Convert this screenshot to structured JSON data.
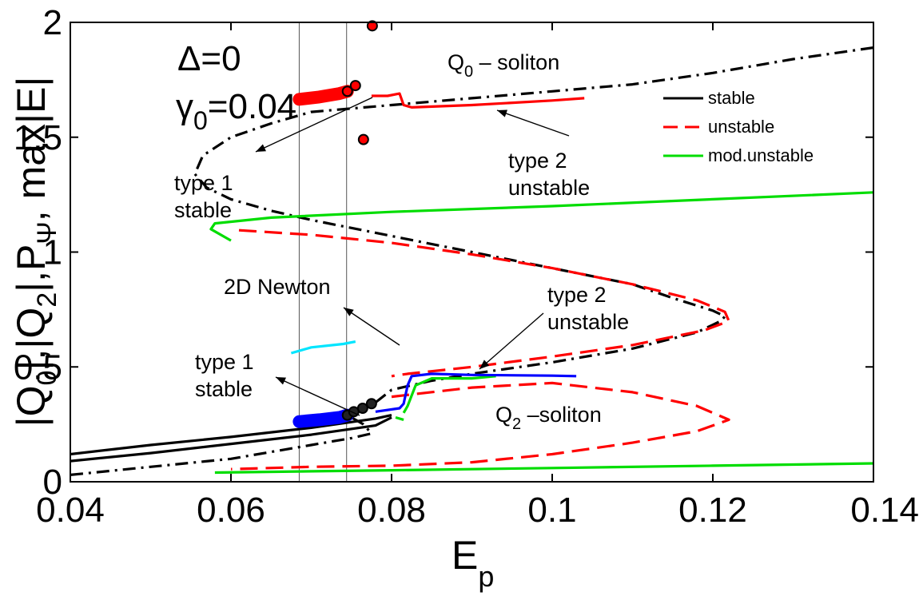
{
  "chart_data": {
    "type": "line",
    "xlabel": "E",
    "xlabel_sub": "p",
    "ylabel": "|Q0|,|Q2|,PΨ, max|E|",
    "xlim": [
      0.04,
      0.14
    ],
    "ylim": [
      0,
      2
    ],
    "x_ticks": [
      "0.04",
      "0.06",
      "0.08",
      "0.1",
      "0.12",
      "0.14"
    ],
    "y_ticks": [
      "0",
      "0.5",
      "1",
      "1.5",
      "2"
    ],
    "x_tick_values": [
      0.04,
      0.06,
      0.08,
      0.1,
      0.12,
      0.14
    ],
    "y_tick_values": [
      0,
      0.5,
      1,
      1.5,
      2
    ],
    "vertical_lines": [
      0.0685,
      0.0744
    ],
    "params": {
      "delta": "Δ=0",
      "gamma": "γ0=0.04"
    },
    "legend": {
      "position": "top-right",
      "entries": [
        {
          "label": "stable",
          "color": "#000000",
          "dash": "solid"
        },
        {
          "label": "unstable",
          "color": "#ff0000",
          "dash": "dashed"
        },
        {
          "label": "mod.unstable",
          "color": "#00dd00",
          "dash": "solid"
        }
      ]
    },
    "annotations": [
      {
        "lines": [
          "Q0 – soliton"
        ]
      },
      {
        "lines": [
          "type 1",
          "stable"
        ]
      },
      {
        "lines": [
          "type 2",
          "unstable"
        ]
      },
      {
        "lines": [
          "2D Newton"
        ]
      },
      {
        "lines": [
          "type 2",
          "unstable"
        ]
      },
      {
        "lines": [
          "type 1",
          "stable"
        ]
      },
      {
        "lines": [
          "Q2 –soliton"
        ]
      }
    ],
    "series": [
      {
        "color": "#000000",
        "dash": "dashdot",
        "points": [
          [
            0.04,
            0.03
          ],
          [
            0.05,
            0.065
          ],
          [
            0.06,
            0.1
          ],
          [
            0.07,
            0.16
          ],
          [
            0.075,
            0.19
          ],
          [
            0.0775,
            0.21
          ],
          [
            0.0765,
            0.25
          ],
          [
            0.0755,
            0.27
          ],
          [
            0.075,
            0.28
          ]
        ]
      },
      {
        "color": "#000000",
        "dash": "dashdot",
        "points": [
          [
            0.078,
            0.345
          ],
          [
            0.08,
            0.4
          ],
          [
            0.085,
            0.44
          ],
          [
            0.09,
            0.47
          ],
          [
            0.1,
            0.52
          ],
          [
            0.11,
            0.58
          ],
          [
            0.118,
            0.65
          ],
          [
            0.121,
            0.7
          ],
          [
            0.1215,
            0.72
          ],
          [
            0.12,
            0.745
          ],
          [
            0.115,
            0.8
          ],
          [
            0.11,
            0.86
          ],
          [
            0.1,
            0.93
          ],
          [
            0.09,
            1.0
          ],
          [
            0.08,
            1.07
          ],
          [
            0.07,
            1.14
          ],
          [
            0.065,
            1.18
          ],
          [
            0.06,
            1.23
          ],
          [
            0.057,
            1.28
          ],
          [
            0.0555,
            1.34
          ],
          [
            0.0565,
            1.42
          ],
          [
            0.06,
            1.5
          ],
          [
            0.065,
            1.56
          ],
          [
            0.07,
            1.61
          ],
          [
            0.08,
            1.64
          ],
          [
            0.09,
            1.67
          ],
          [
            0.1,
            1.7
          ],
          [
            0.11,
            1.73
          ],
          [
            0.12,
            1.78
          ],
          [
            0.13,
            1.84
          ],
          [
            0.14,
            1.89
          ]
        ]
      },
      {
        "color": "#000000",
        "dash": "solid",
        "points": [
          [
            0.04,
            0.12
          ],
          [
            0.05,
            0.16
          ],
          [
            0.06,
            0.195
          ],
          [
            0.07,
            0.235
          ],
          [
            0.078,
            0.275
          ],
          [
            0.08,
            0.29
          ]
        ]
      },
      {
        "color": "#000000",
        "dash": "solid",
        "points": [
          [
            0.04,
            0.09
          ],
          [
            0.05,
            0.125
          ],
          [
            0.06,
            0.165
          ],
          [
            0.07,
            0.205
          ],
          [
            0.078,
            0.245
          ],
          [
            0.08,
            0.28
          ]
        ]
      },
      {
        "color": "#ff0000",
        "dash": "dashed",
        "points": [
          [
            0.061,
            1.095
          ],
          [
            0.07,
            1.075
          ],
          [
            0.08,
            1.04
          ],
          [
            0.09,
            0.99
          ],
          [
            0.1,
            0.93
          ],
          [
            0.11,
            0.86
          ],
          [
            0.118,
            0.79
          ],
          [
            0.1215,
            0.74
          ],
          [
            0.122,
            0.7
          ],
          [
            0.119,
            0.66
          ],
          [
            0.11,
            0.595
          ],
          [
            0.1,
            0.545
          ],
          [
            0.09,
            0.5
          ],
          [
            0.082,
            0.47
          ],
          [
            0.08,
            0.46
          ]
        ]
      },
      {
        "color": "#ff0000",
        "dash": "dashed",
        "points": [
          [
            0.08,
            0.37
          ],
          [
            0.09,
            0.41
          ],
          [
            0.1,
            0.43
          ],
          [
            0.11,
            0.39
          ],
          [
            0.118,
            0.33
          ],
          [
            0.122,
            0.27
          ],
          [
            0.118,
            0.22
          ],
          [
            0.11,
            0.17
          ],
          [
            0.1,
            0.12
          ],
          [
            0.09,
            0.085
          ],
          [
            0.08,
            0.07
          ],
          [
            0.07,
            0.065
          ],
          [
            0.06,
            0.055
          ]
        ]
      },
      {
        "color": "#ff0000",
        "dash": "solid",
        "points": [
          [
            0.0775,
            1.68
          ],
          [
            0.0795,
            1.68
          ],
          [
            0.081,
            1.69
          ],
          [
            0.0815,
            1.64
          ],
          [
            0.0825,
            1.63
          ],
          [
            0.09,
            1.64
          ],
          [
            0.1,
            1.66
          ],
          [
            0.104,
            1.67
          ]
        ]
      },
      {
        "color": "#00dd00",
        "dash": "solid",
        "points": [
          [
            0.06,
            1.05
          ],
          [
            0.0575,
            1.1
          ],
          [
            0.058,
            1.125
          ],
          [
            0.065,
            1.15
          ],
          [
            0.08,
            1.175
          ],
          [
            0.1,
            1.2
          ],
          [
            0.12,
            1.23
          ],
          [
            0.14,
            1.26
          ]
        ]
      },
      {
        "color": "#00dd00",
        "dash": "solid",
        "points": [
          [
            0.058,
            0.04
          ],
          [
            0.08,
            0.05
          ],
          [
            0.1,
            0.06
          ],
          [
            0.12,
            0.07
          ],
          [
            0.14,
            0.08
          ]
        ]
      },
      {
        "color": "#00dd00",
        "dash": "solid",
        "points": [
          [
            0.0815,
            0.3
          ],
          [
            0.082,
            0.33
          ],
          [
            0.083,
            0.42
          ],
          [
            0.085,
            0.45
          ],
          [
            0.09,
            0.45
          ],
          [
            0.093,
            0.46
          ]
        ]
      },
      {
        "color": "#00dd00",
        "dash": "solid",
        "points": [
          [
            0.0815,
            0.27
          ],
          [
            0.0805,
            0.28
          ]
        ]
      },
      {
        "color": "#0000ff",
        "dash": "solid",
        "points": [
          [
            0.078,
            0.305
          ],
          [
            0.081,
            0.32
          ],
          [
            0.0815,
            0.34
          ],
          [
            0.082,
            0.42
          ],
          [
            0.0825,
            0.46
          ],
          [
            0.085,
            0.47
          ],
          [
            0.09,
            0.465
          ],
          [
            0.1,
            0.462
          ],
          [
            0.103,
            0.46
          ]
        ]
      },
      {
        "color": "#00e5ff",
        "dash": "solid",
        "points": [
          [
            0.0675,
            0.56
          ],
          [
            0.07,
            0.585
          ],
          [
            0.074,
            0.6
          ],
          [
            0.0755,
            0.61
          ]
        ]
      },
      {
        "color": "#ff0000",
        "dash": "thick",
        "points": [
          [
            0.0685,
            1.665
          ],
          [
            0.071,
            1.675
          ],
          [
            0.0735,
            1.69
          ],
          [
            0.0745,
            1.7
          ]
        ]
      },
      {
        "color": "#0000ff",
        "dash": "thick",
        "points": [
          [
            0.0685,
            0.262
          ],
          [
            0.071,
            0.27
          ],
          [
            0.0735,
            0.28
          ],
          [
            0.0745,
            0.29
          ]
        ]
      }
    ],
    "markers": [
      {
        "x": 0.0776,
        "y": 1.985,
        "fill": "#ff0000"
      },
      {
        "x": 0.0745,
        "y": 1.7,
        "fill": "#ff0000"
      },
      {
        "x": 0.0755,
        "y": 1.725,
        "fill": "#ff0000"
      },
      {
        "x": 0.0765,
        "y": 1.49,
        "fill": "#ff0000"
      },
      {
        "x": 0.0745,
        "y": 0.29,
        "fill": "#222222"
      },
      {
        "x": 0.0753,
        "y": 0.305,
        "fill": "#222222"
      },
      {
        "x": 0.0764,
        "y": 0.32,
        "fill": "#222222"
      },
      {
        "x": 0.0775,
        "y": 0.34,
        "fill": "#222222"
      }
    ]
  }
}
